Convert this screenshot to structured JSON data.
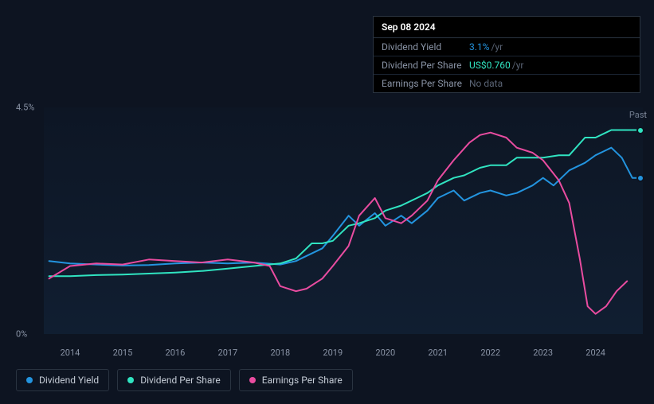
{
  "tooltip": {
    "date": "Sep 08 2024",
    "rows": [
      {
        "label": "Dividend Yield",
        "value": "3.1%",
        "suffix": "/yr",
        "color": "blue"
      },
      {
        "label": "Dividend Per Share",
        "value": "US$0.760",
        "suffix": "/yr",
        "color": "teal"
      },
      {
        "label": "Earnings Per Share",
        "value": "No data",
        "suffix": "",
        "color": "muted"
      }
    ]
  },
  "chart": {
    "ylabels": [
      {
        "text": "4.5%",
        "pct": 0
      },
      {
        "text": "0%",
        "pct": 100
      }
    ],
    "xlabels": [
      "2014",
      "2015",
      "2016",
      "2017",
      "2018",
      "2019",
      "2020",
      "2021",
      "2022",
      "2023",
      "2024"
    ],
    "xmin": 2013.5,
    "xmax": 2024.9,
    "ymax": 4.5,
    "past_label": "Past",
    "series": [
      {
        "name": "Dividend Yield",
        "color": "#2394df",
        "points": [
          [
            2013.6,
            1.45
          ],
          [
            2014.0,
            1.4
          ],
          [
            2014.5,
            1.38
          ],
          [
            2015.0,
            1.36
          ],
          [
            2015.5,
            1.37
          ],
          [
            2016.0,
            1.4
          ],
          [
            2016.5,
            1.42
          ],
          [
            2017.0,
            1.4
          ],
          [
            2017.5,
            1.42
          ],
          [
            2018.0,
            1.38
          ],
          [
            2018.3,
            1.45
          ],
          [
            2018.5,
            1.55
          ],
          [
            2018.8,
            1.7
          ],
          [
            2019.0,
            1.95
          ],
          [
            2019.3,
            2.35
          ],
          [
            2019.5,
            2.15
          ],
          [
            2019.8,
            2.4
          ],
          [
            2020.0,
            2.15
          ],
          [
            2020.3,
            2.35
          ],
          [
            2020.5,
            2.2
          ],
          [
            2020.8,
            2.45
          ],
          [
            2021.0,
            2.7
          ],
          [
            2021.3,
            2.85
          ],
          [
            2021.5,
            2.65
          ],
          [
            2021.8,
            2.8
          ],
          [
            2022.0,
            2.85
          ],
          [
            2022.3,
            2.75
          ],
          [
            2022.5,
            2.8
          ],
          [
            2022.8,
            2.95
          ],
          [
            2023.0,
            3.1
          ],
          [
            2023.2,
            2.95
          ],
          [
            2023.5,
            3.25
          ],
          [
            2023.8,
            3.4
          ],
          [
            2024.0,
            3.55
          ],
          [
            2024.3,
            3.7
          ],
          [
            2024.5,
            3.5
          ],
          [
            2024.7,
            3.1
          ],
          [
            2024.85,
            3.1
          ]
        ]
      },
      {
        "name": "Dividend Per Share",
        "color": "#30e4c1",
        "points": [
          [
            2013.6,
            1.15
          ],
          [
            2014.0,
            1.15
          ],
          [
            2014.5,
            1.17
          ],
          [
            2015.0,
            1.18
          ],
          [
            2015.5,
            1.2
          ],
          [
            2016.0,
            1.22
          ],
          [
            2016.5,
            1.25
          ],
          [
            2017.0,
            1.3
          ],
          [
            2017.5,
            1.35
          ],
          [
            2018.0,
            1.4
          ],
          [
            2018.3,
            1.5
          ],
          [
            2018.6,
            1.8
          ],
          [
            2018.8,
            1.8
          ],
          [
            2019.0,
            1.85
          ],
          [
            2019.3,
            2.15
          ],
          [
            2019.5,
            2.2
          ],
          [
            2019.8,
            2.3
          ],
          [
            2020.0,
            2.45
          ],
          [
            2020.3,
            2.55
          ],
          [
            2020.6,
            2.7
          ],
          [
            2020.8,
            2.8
          ],
          [
            2021.0,
            2.95
          ],
          [
            2021.3,
            3.1
          ],
          [
            2021.5,
            3.15
          ],
          [
            2021.8,
            3.3
          ],
          [
            2022.0,
            3.35
          ],
          [
            2022.3,
            3.35
          ],
          [
            2022.5,
            3.5
          ],
          [
            2022.8,
            3.5
          ],
          [
            2023.0,
            3.5
          ],
          [
            2023.3,
            3.55
          ],
          [
            2023.5,
            3.55
          ],
          [
            2023.8,
            3.9
          ],
          [
            2024.0,
            3.9
          ],
          [
            2024.3,
            4.05
          ],
          [
            2024.5,
            4.05
          ],
          [
            2024.85,
            4.05
          ]
        ]
      },
      {
        "name": "Earnings Per Share",
        "color": "#e94ca0",
        "points": [
          [
            2013.6,
            1.1
          ],
          [
            2014.0,
            1.35
          ],
          [
            2014.5,
            1.4
          ],
          [
            2015.0,
            1.38
          ],
          [
            2015.5,
            1.48
          ],
          [
            2016.0,
            1.45
          ],
          [
            2016.5,
            1.42
          ],
          [
            2017.0,
            1.48
          ],
          [
            2017.5,
            1.42
          ],
          [
            2017.8,
            1.35
          ],
          [
            2018.0,
            0.95
          ],
          [
            2018.3,
            0.85
          ],
          [
            2018.5,
            0.9
          ],
          [
            2018.8,
            1.1
          ],
          [
            2019.0,
            1.35
          ],
          [
            2019.3,
            1.75
          ],
          [
            2019.5,
            2.35
          ],
          [
            2019.8,
            2.7
          ],
          [
            2020.0,
            2.3
          ],
          [
            2020.3,
            2.2
          ],
          [
            2020.5,
            2.35
          ],
          [
            2020.8,
            2.65
          ],
          [
            2021.0,
            3.05
          ],
          [
            2021.3,
            3.45
          ],
          [
            2021.6,
            3.8
          ],
          [
            2021.8,
            3.95
          ],
          [
            2022.0,
            4.0
          ],
          [
            2022.3,
            3.9
          ],
          [
            2022.5,
            3.7
          ],
          [
            2022.8,
            3.6
          ],
          [
            2023.0,
            3.45
          ],
          [
            2023.3,
            3.05
          ],
          [
            2023.5,
            2.6
          ],
          [
            2023.7,
            1.5
          ],
          [
            2023.85,
            0.55
          ],
          [
            2024.0,
            0.4
          ],
          [
            2024.2,
            0.55
          ],
          [
            2024.4,
            0.85
          ],
          [
            2024.6,
            1.05
          ]
        ]
      }
    ],
    "markers": [
      {
        "x": 2024.85,
        "y": 4.05,
        "color": "#30e4c1"
      },
      {
        "x": 2024.85,
        "y": 3.1,
        "color": "#2394df"
      }
    ]
  },
  "legend": [
    {
      "label": "Dividend Yield",
      "color": "#2394df"
    },
    {
      "label": "Dividend Per Share",
      "color": "#30e4c1"
    },
    {
      "label": "Earnings Per Share",
      "color": "#e94ca0"
    }
  ]
}
